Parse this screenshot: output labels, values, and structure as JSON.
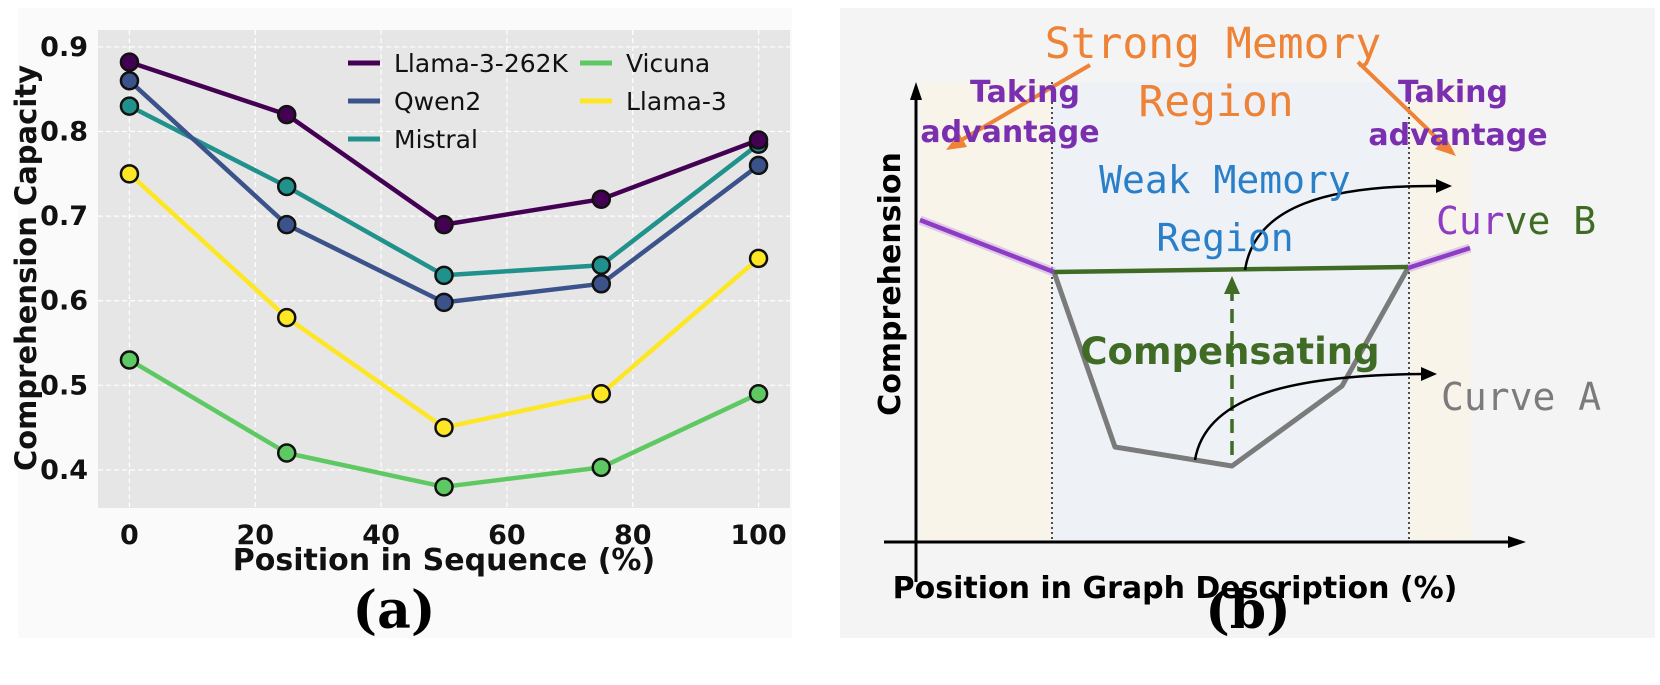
{
  "chart_data": [
    {
      "type": "line",
      "panel_label": "(a)",
      "xlabel": "Position in Sequence (%)",
      "ylabel": "Comprehension Capacity",
      "x": [
        0,
        25,
        50,
        75,
        100
      ],
      "xlim": [
        -5,
        105
      ],
      "ylim": [
        0.355,
        0.92
      ],
      "xticks": [
        "0",
        "20",
        "40",
        "60",
        "80",
        "100"
      ],
      "xtick_values": [
        0,
        20,
        40,
        60,
        80,
        100
      ],
      "yticks": [
        "0.4",
        "0.5",
        "0.6",
        "0.7",
        "0.8",
        "0.9"
      ],
      "ytick_values": [
        0.4,
        0.5,
        0.6,
        0.7,
        0.8,
        0.9
      ],
      "grid": true,
      "legend_position": "top-right",
      "series": [
        {
          "name": "Llama-3-262K",
          "color": "#440154",
          "values": [
            0.882,
            0.82,
            0.69,
            0.72,
            0.79
          ]
        },
        {
          "name": "Qwen2",
          "color": "#3b528b",
          "values": [
            0.86,
            0.69,
            0.598,
            0.62,
            0.76
          ]
        },
        {
          "name": "Mistral",
          "color": "#21918c",
          "values": [
            0.83,
            0.735,
            0.63,
            0.642,
            0.785
          ]
        },
        {
          "name": "Vicuna",
          "color": "#5ec962",
          "values": [
            0.53,
            0.42,
            0.38,
            0.403,
            0.49
          ]
        },
        {
          "name": "Llama-3",
          "color": "#fde725",
          "values": [
            0.75,
            0.58,
            0.45,
            0.49,
            0.65
          ]
        }
      ]
    },
    {
      "type": "diagram",
      "panel_label": "(b)",
      "xlabel": "Position in Graph Description (%)",
      "ylabel": "Comprehension",
      "strong_region_label_1": "Strong Memory",
      "strong_region_label_2": "Region",
      "weak_region_label_1": "Weak Memory",
      "weak_region_label_2": "Region",
      "taking_advantage_left_1": "Taking",
      "taking_advantage_left_2": "advantage",
      "taking_advantage_right_1": "Taking",
      "taking_advantage_right_2": "advantage",
      "compensating_label": "Compensating",
      "curve_b_part1": "Cur",
      "curve_b_part2": "ve B",
      "curve_a_label": "Curve A",
      "colors": {
        "strong": "#ee8236",
        "weak": "#2a7fc9",
        "taking": "#7a2fb0",
        "curve_b_purple": "#8e3cc4",
        "curve_b_green": "#3f6b25",
        "curve_a": "#7b7b7b"
      }
    }
  ]
}
